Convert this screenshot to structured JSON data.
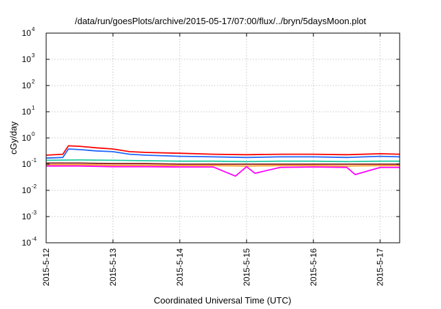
{
  "chart_data": {
    "type": "line",
    "title": "/data/run/goesPlots/archive/2015-05-17/07:00/flux/../bryn/5daysMoon.plot",
    "xlabel": "Coordinated Universal Time (UTC)",
    "ylabel": "cGy/day",
    "yscale": "log",
    "ylim": [
      0.0001,
      10000
    ],
    "xlim": [
      "2015-05-12T00:00",
      "2015-05-17T07:00"
    ],
    "x_ticks": [
      "2015-5-12",
      "2015-5-13",
      "2015-5-14",
      "2015-5-15",
      "2015-5-16",
      "2015-5-17"
    ],
    "y_ticks": [
      {
        "value": 0.0001,
        "base": "10",
        "exp": "-4"
      },
      {
        "value": 0.001,
        "base": "10",
        "exp": "-3"
      },
      {
        "value": 0.01,
        "base": "10",
        "exp": "-2"
      },
      {
        "value": 0.1,
        "base": "10",
        "exp": "-1"
      },
      {
        "value": 1,
        "base": "10",
        "exp": "0"
      },
      {
        "value": 10,
        "base": "10",
        "exp": "1"
      },
      {
        "value": 100,
        "base": "10",
        "exp": "2"
      },
      {
        "value": 1000,
        "base": "10",
        "exp": "3"
      },
      {
        "value": 10000,
        "base": "10",
        "exp": "4"
      }
    ],
    "grid": true,
    "series": [
      {
        "color": "#ff0000",
        "x": [
          "2015-05-12T00:00",
          "2015-05-12T06:00",
          "2015-05-12T08:00",
          "2015-05-12T12:00",
          "2015-05-12T18:00",
          "2015-05-13T00:00",
          "2015-05-13T06:00",
          "2015-05-13T12:00",
          "2015-05-14T00:00",
          "2015-05-14T12:00",
          "2015-05-15T00:00",
          "2015-05-15T12:00",
          "2015-05-16T00:00",
          "2015-05-16T12:00",
          "2015-05-17T00:00",
          "2015-05-17T07:00"
        ],
        "values": [
          0.22,
          0.24,
          0.5,
          0.48,
          0.42,
          0.38,
          0.3,
          0.28,
          0.26,
          0.24,
          0.23,
          0.24,
          0.24,
          0.23,
          0.25,
          0.24
        ]
      },
      {
        "color": "#1e64ff",
        "x": [
          "2015-05-12T00:00",
          "2015-05-12T06:00",
          "2015-05-12T08:00",
          "2015-05-12T12:00",
          "2015-05-12T18:00",
          "2015-05-13T00:00",
          "2015-05-13T06:00",
          "2015-05-13T12:00",
          "2015-05-14T00:00",
          "2015-05-14T12:00",
          "2015-05-15T00:00",
          "2015-05-15T12:00",
          "2015-05-16T00:00",
          "2015-05-16T12:00",
          "2015-05-17T00:00",
          "2015-05-17T07:00"
        ],
        "values": [
          0.17,
          0.18,
          0.38,
          0.36,
          0.32,
          0.3,
          0.24,
          0.22,
          0.2,
          0.19,
          0.18,
          0.19,
          0.19,
          0.18,
          0.2,
          0.19
        ]
      },
      {
        "color": "#1ecca0",
        "x": [
          "2015-05-12T00:00",
          "2015-05-12T12:00",
          "2015-05-13T00:00",
          "2015-05-13T12:00",
          "2015-05-14T00:00",
          "2015-05-14T12:00",
          "2015-05-15T00:00",
          "2015-05-15T12:00",
          "2015-05-16T00:00",
          "2015-05-16T12:00",
          "2015-05-17T00:00",
          "2015-05-17T07:00"
        ],
        "values": [
          0.14,
          0.145,
          0.14,
          0.135,
          0.13,
          0.13,
          0.125,
          0.13,
          0.13,
          0.125,
          0.13,
          0.13
        ]
      },
      {
        "color": "#8b1a1a",
        "x": [
          "2015-05-12T00:00",
          "2015-05-12T12:00",
          "2015-05-13T00:00",
          "2015-05-13T12:00",
          "2015-05-14T00:00",
          "2015-05-14T12:00",
          "2015-05-15T00:00",
          "2015-05-15T12:00",
          "2015-05-16T00:00",
          "2015-05-16T12:00",
          "2015-05-17T00:00",
          "2015-05-17T07:00"
        ],
        "values": [
          0.11,
          0.11,
          0.105,
          0.105,
          0.1,
          0.1,
          0.1,
          0.1,
          0.1,
          0.1,
          0.1,
          0.1
        ]
      },
      {
        "color": "#ff9a1e",
        "x": [
          "2015-05-12T00:00",
          "2015-05-12T12:00",
          "2015-05-13T00:00",
          "2015-05-13T12:00",
          "2015-05-14T00:00",
          "2015-05-14T12:00",
          "2015-05-15T00:00",
          "2015-05-15T12:00",
          "2015-05-16T00:00",
          "2015-05-16T12:00",
          "2015-05-17T00:00",
          "2015-05-17T07:00"
        ],
        "values": [
          0.095,
          0.095,
          0.09,
          0.09,
          0.088,
          0.088,
          0.085,
          0.088,
          0.088,
          0.085,
          0.088,
          0.088
        ]
      },
      {
        "color": "#ff00ff",
        "x": [
          "2015-05-12T00:00",
          "2015-05-12T12:00",
          "2015-05-13T00:00",
          "2015-05-13T12:00",
          "2015-05-14T00:00",
          "2015-05-14T12:00",
          "2015-05-14T20:00",
          "2015-05-15T00:00",
          "2015-05-15T03:00",
          "2015-05-15T12:00",
          "2015-05-16T00:00",
          "2015-05-16T12:00",
          "2015-05-16T15:00",
          "2015-05-17T00:00",
          "2015-05-17T07:00"
        ],
        "values": [
          0.085,
          0.085,
          0.08,
          0.08,
          0.078,
          0.078,
          0.035,
          0.08,
          0.045,
          0.075,
          0.078,
          0.075,
          0.04,
          0.075,
          0.075
        ]
      }
    ]
  }
}
